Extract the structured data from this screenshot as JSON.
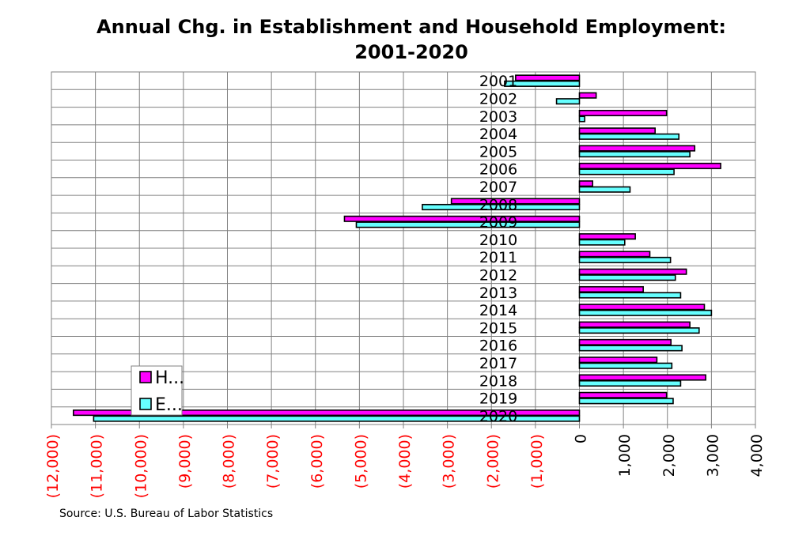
{
  "chart_data": {
    "type": "bar",
    "orientation": "horizontal",
    "title_line1": "Annual Chg. in Establishment and Household Employment:",
    "title_line2": "2001-2020",
    "categories": [
      "2001",
      "2002",
      "2003",
      "2004",
      "2005",
      "2006",
      "2007",
      "2008",
      "2009",
      "2010",
      "2011",
      "2012",
      "2013",
      "2014",
      "2015",
      "2016",
      "2017",
      "2018",
      "2019",
      "2020"
    ],
    "series": [
      {
        "name": "H...",
        "color": "#ff00ff",
        "values": [
          -1450,
          380,
          1980,
          1720,
          2620,
          3210,
          300,
          -2910,
          -5340,
          1270,
          1600,
          2430,
          1450,
          2840,
          2510,
          2080,
          1760,
          2870,
          1980,
          -11500
        ]
      },
      {
        "name": "E...",
        "color": "#66ffff",
        "values": [
          -1700,
          -520,
          120,
          2260,
          2510,
          2150,
          1150,
          -3570,
          -5070,
          1030,
          2070,
          2180,
          2300,
          3000,
          2720,
          2330,
          2100,
          2300,
          2130,
          -11040
        ]
      }
    ],
    "xlim": [
      -12000,
      4000
    ],
    "x_ticks": [
      -12000,
      -11000,
      -10000,
      -9000,
      -8000,
      -7000,
      -6000,
      -5000,
      -4000,
      -3000,
      -2000,
      -1000,
      0,
      1000,
      2000,
      3000,
      4000
    ],
    "x_tick_labels": [
      "(12,000)",
      "(11,000)",
      "(10,000)",
      "(9,000)",
      "(8,000)",
      "(7,000)",
      "(6,000)",
      "(5,000)",
      "(4,000)",
      "(3,000)",
      "(2,000)",
      "(1,000)",
      "0",
      "1,000",
      "2,000",
      "3,000",
      "4,000"
    ],
    "negative_tick_color": "#ff0000",
    "positive_tick_color": "#000000",
    "grid": true,
    "legend_position": "bottom-left",
    "xlabel": "",
    "ylabel": ""
  },
  "source_note": "Source:  U.S. Bureau of Labor Statistics"
}
